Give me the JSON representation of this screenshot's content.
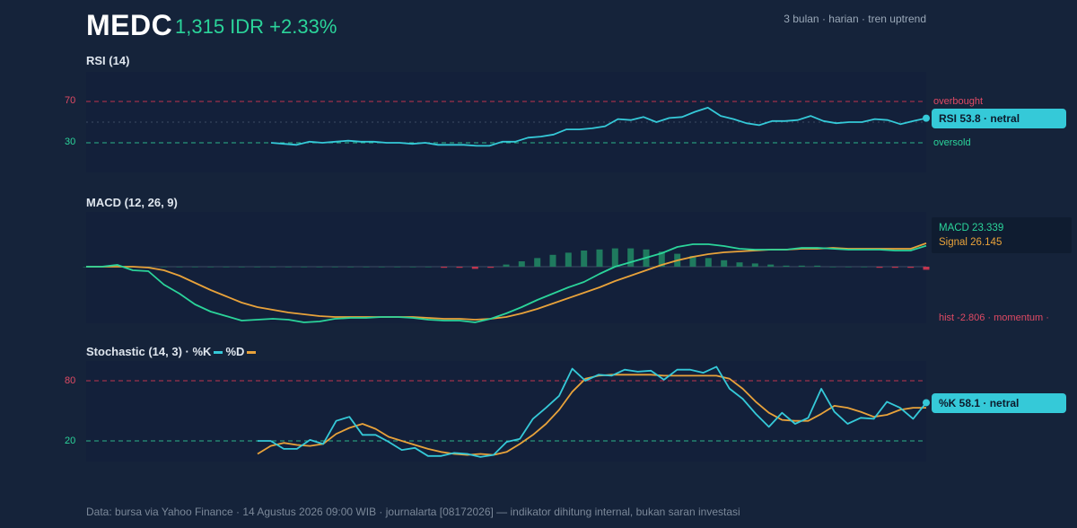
{
  "header": {
    "ticker": "MEDC",
    "price_change": "1,315 IDR +2.33%",
    "meta": "3 bulan · harian · tren uptrend"
  },
  "colors": {
    "background": "#15233a",
    "panel": "#13203a",
    "rsi_line": "#35c9d8",
    "k_line": "#35c9d8",
    "d_line": "#e8a23a",
    "macd_line": "#2bd49a",
    "signal_line": "#e8a23a",
    "hist_pos": "#1f7a5e",
    "hist_neg": "#c2354f",
    "overbought": "#c2354f",
    "oversold": "#2bb58a"
  },
  "rsi": {
    "title": "RSI (14)",
    "badge": "RSI 53.8 · netral",
    "overbought_label": "overbought",
    "oversold_label": "oversold",
    "tick_upper": "70",
    "tick_lower": "30"
  },
  "macd": {
    "title": "MACD (12, 26, 9)",
    "macd_label": "MACD 23.339",
    "signal_label": "Signal 26.145",
    "hist_label": "hist -2.806 · momentum ·"
  },
  "stoch": {
    "title": "Stochastic (14, 3) · %K",
    "legend_d": "%D",
    "badge": "%K 58.1 · netral",
    "tick_upper": "80",
    "tick_lower": "20"
  },
  "footer": "Data: bursa via Yahoo Finance · 14 Agustus 2026 09:00 WIB · journalarta [08172026] — indikator dihitung internal, bukan saran investasi",
  "chart_data": [
    {
      "type": "line",
      "title": "RSI (14)",
      "ylim": [
        0,
        100
      ],
      "reference_lines": [
        70,
        30
      ],
      "series": [
        {
          "values": [
            30,
            29,
            28,
            31,
            30,
            31,
            32,
            31,
            31,
            30,
            30,
            29,
            30,
            28,
            28,
            28,
            27,
            27,
            31,
            31,
            35,
            36,
            38,
            43,
            43,
            44,
            46,
            53,
            52,
            55,
            50,
            54,
            55,
            60,
            64,
            56,
            53,
            49,
            47,
            51,
            51,
            52,
            56,
            51,
            49,
            50,
            50,
            53,
            52,
            48,
            51,
            53.8
          ]
        }
      ]
    },
    {
      "type": "line",
      "title": "MACD (12, 26, 9)",
      "series": [
        {
          "name": "MACD",
          "values": [
            0,
            0,
            2,
            -4,
            -5,
            -20,
            -30,
            -42,
            -50,
            -55,
            -60,
            -59,
            -58,
            -59,
            -62,
            -61,
            -58,
            -57,
            -57,
            -56,
            -56,
            -57,
            -59,
            -60,
            -60,
            -62,
            -58,
            -52,
            -45,
            -37,
            -30,
            -23,
            -17,
            -8,
            0,
            5,
            10,
            15,
            22,
            25,
            25,
            23,
            20,
            19,
            19,
            19,
            21,
            21,
            20,
            19,
            19,
            19,
            18,
            18,
            23.339
          ]
        },
        {
          "name": "Signal",
          "values": [
            0,
            0,
            0,
            0,
            -1,
            -4,
            -10,
            -18,
            -26,
            -33,
            -40,
            -45,
            -48,
            -51,
            -53,
            -55,
            -56,
            -56,
            -56,
            -56,
            -56,
            -56,
            -57,
            -58,
            -58,
            -59,
            -58,
            -56,
            -52,
            -47,
            -41,
            -35,
            -29,
            -23,
            -16,
            -10,
            -4,
            2,
            7,
            11,
            14,
            16,
            17,
            18,
            19,
            19,
            20,
            20,
            21,
            20,
            20,
            20,
            20,
            20,
            26.145
          ]
        },
        {
          "name": "hist",
          "values": [
            0,
            0,
            0,
            0,
            0,
            0,
            0,
            0,
            0,
            0,
            0,
            0,
            0,
            0,
            0,
            0,
            0,
            0,
            0,
            0,
            0,
            0,
            0,
            -1,
            -1,
            -2,
            -1,
            2,
            5,
            8,
            11,
            13,
            15,
            16,
            17,
            17,
            16,
            14,
            12,
            10,
            8,
            6,
            4,
            3,
            2,
            1,
            1,
            1,
            0,
            0,
            0,
            -1,
            -1,
            -1,
            -2.806
          ]
        }
      ]
    },
    {
      "type": "line",
      "title": "Stochastic (14, 3)",
      "ylim": [
        0,
        100
      ],
      "reference_lines": [
        80,
        20
      ],
      "series": [
        {
          "name": "%K",
          "values": [
            20,
            20,
            12,
            12,
            21,
            17,
            40,
            44,
            26,
            26,
            19,
            11,
            13,
            5,
            5,
            8,
            7,
            4,
            6,
            19,
            22,
            42,
            53,
            65,
            92,
            80,
            86,
            85,
            91,
            89,
            90,
            81,
            91,
            91,
            88,
            94,
            72,
            62,
            47,
            34,
            48,
            37,
            43,
            72,
            49,
            37,
            43,
            42,
            59,
            53,
            42,
            58.1
          ]
        },
        {
          "name": "%D",
          "values": [
            7,
            15,
            18,
            16,
            15,
            17,
            27,
            33,
            37,
            32,
            24,
            20,
            16,
            12,
            9,
            7,
            6,
            7,
            6,
            9,
            17,
            26,
            37,
            51,
            69,
            82,
            85,
            86,
            86,
            86,
            86,
            85,
            85,
            85,
            85,
            85,
            82,
            72,
            59,
            48,
            41,
            40,
            40,
            47,
            55,
            53,
            49,
            44,
            46,
            51,
            53,
            53
          ]
        }
      ]
    }
  ]
}
